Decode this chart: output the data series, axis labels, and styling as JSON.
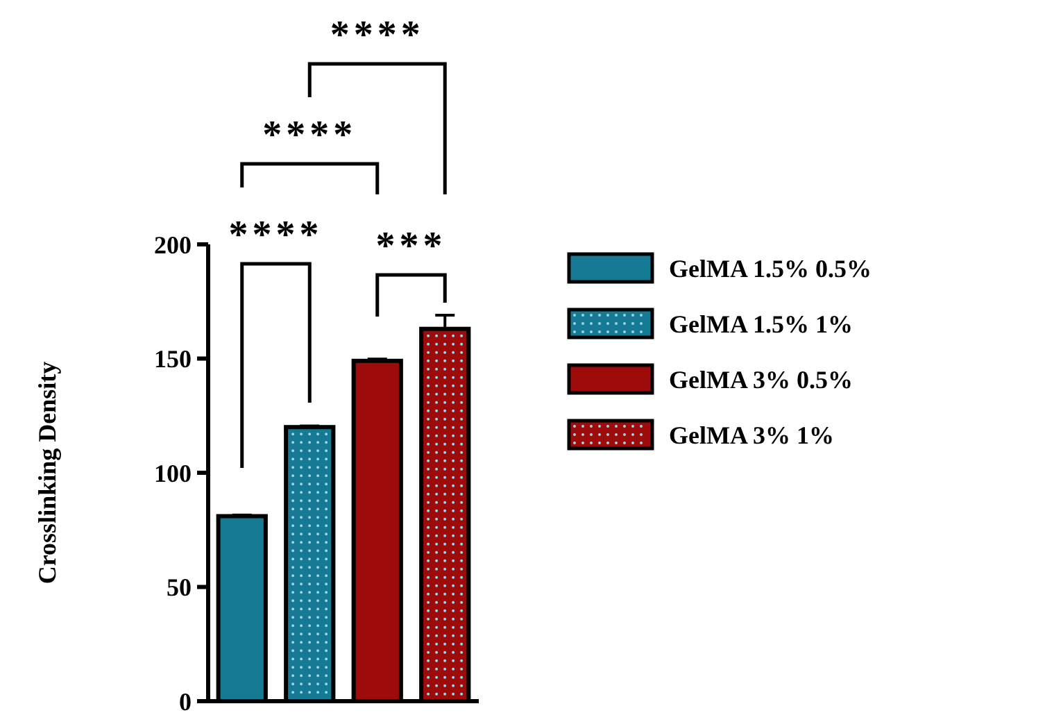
{
  "chart_data": {
    "type": "bar",
    "ylabel": "Crosslinking Density",
    "categories": [
      null,
      null,
      null,
      null
    ],
    "series": [
      {
        "name": "GelMA 1.5% 0.5%",
        "color": "#167a94",
        "values": [
          81,
          null,
          null,
          null
        ],
        "errors": [
          0.5,
          null,
          null,
          null
        ]
      },
      {
        "name": "GelMA 1.5% 1%",
        "color": "#167a94",
        "values": [
          null,
          120,
          null,
          null
        ],
        "errors": [
          null,
          0.5,
          null,
          null
        ]
      },
      {
        "name": "GelMA 3% 0.5%",
        "color": "#9e0b0b",
        "values": [
          null,
          null,
          149,
          null
        ],
        "errors": [
          null,
          null,
          0.8,
          null
        ]
      },
      {
        "name": "GelMA 3% 1%",
        "color": "#9e0b0b",
        "values": [
          null,
          null,
          null,
          163
        ],
        "errors": [
          null,
          null,
          null,
          6
        ]
      }
    ],
    "ylim": [
      0,
      200
    ],
    "yticks": [
      0,
      50,
      100,
      150,
      200
    ],
    "grid": false,
    "legend": "right",
    "annotations": [
      "****",
      "***",
      "****",
      "****"
    ]
  }
}
